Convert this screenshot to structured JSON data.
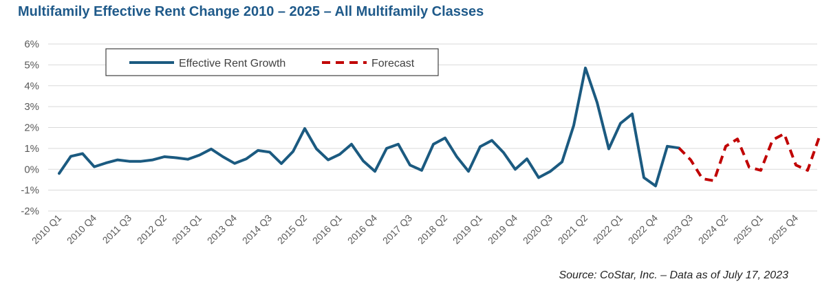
{
  "chart_data": {
    "type": "line",
    "title": "Multifamily Effective Rent Change 2010 – 2025 – All Multifamily Classes",
    "source": "Source: CoStar, Inc. – Data as of July 17, 2023",
    "y_ticks": [
      "6%",
      "5%",
      "4%",
      "3%",
      "2%",
      "1%",
      "0%",
      "-1%",
      "-2%"
    ],
    "ylim": [
      -2,
      6
    ],
    "grid": "horizontal",
    "legend_position": "top-left",
    "x_ticks": [
      "2010 Q1",
      "2010 Q4",
      "2011 Q3",
      "2012 Q2",
      "2013 Q1",
      "2013 Q4",
      "2014 Q3",
      "2015 Q2",
      "2016 Q1",
      "2016 Q4",
      "2017 Q3",
      "2018 Q2",
      "2019 Q1",
      "2019 Q4",
      "2020 Q3",
      "2021 Q2",
      "2022 Q1",
      "2022 Q4",
      "2023 Q3",
      "2024 Q2",
      "2025 Q1",
      "2025 Q4"
    ],
    "x_tick_every": 3,
    "x_first": "2010 Q1",
    "series": [
      {
        "name": "Effective Rent Growth",
        "color": "#1b5a80",
        "style": "solid",
        "start_index": 0,
        "values": [
          -0.2,
          0.62,
          0.75,
          0.12,
          0.3,
          0.45,
          0.38,
          0.38,
          0.45,
          0.6,
          0.55,
          0.48,
          0.68,
          0.97,
          0.6,
          0.28,
          0.5,
          0.9,
          0.82,
          0.27,
          0.85,
          1.95,
          0.98,
          0.45,
          0.72,
          1.2,
          0.4,
          -0.1,
          1.0,
          1.2,
          0.2,
          -0.05,
          1.2,
          1.5,
          0.6,
          -0.1,
          1.08,
          1.38,
          0.8,
          0.0,
          0.5,
          -0.4,
          -0.1,
          0.35,
          2.1,
          4.85,
          3.2,
          0.98,
          2.2,
          2.65,
          -0.4,
          -0.8,
          1.1,
          1.02
        ]
      },
      {
        "name": "Forecast",
        "color": "#c00000",
        "style": "dashed",
        "start_index": 53,
        "values": [
          1.02,
          0.45,
          -0.45,
          -0.55,
          1.1,
          1.45,
          0.1,
          -0.05,
          1.4,
          1.7,
          0.2,
          -0.05,
          1.55
        ]
      }
    ]
  }
}
